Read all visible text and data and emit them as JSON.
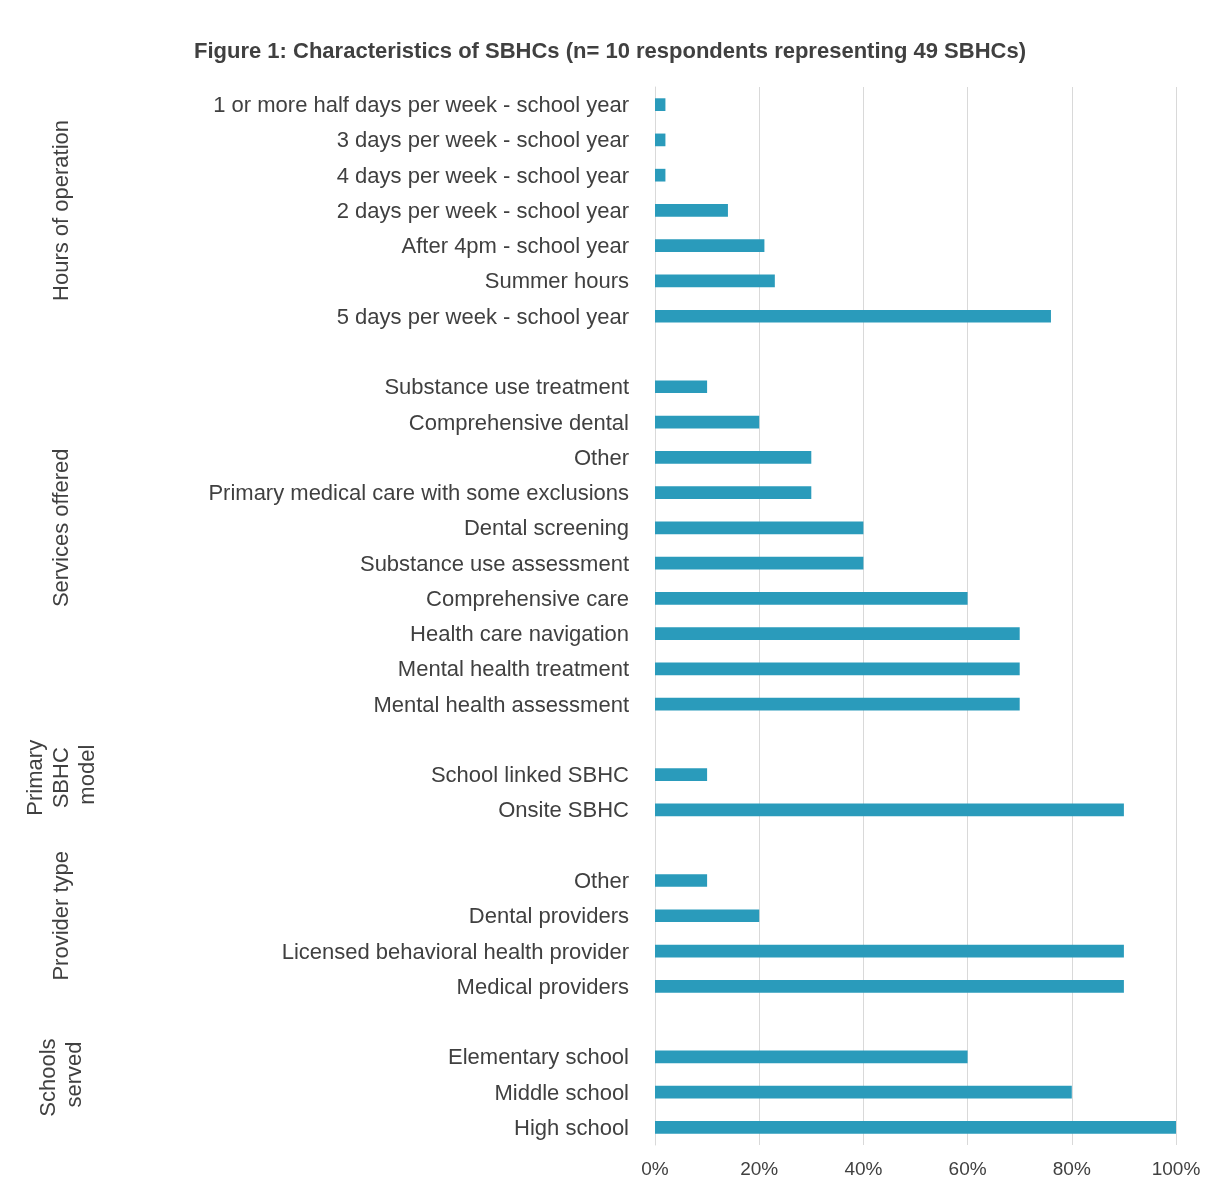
{
  "chart_data": {
    "type": "bar",
    "orientation": "horizontal",
    "title": "Figure 1: Characteristics of SBHCs (n= 10 respondents representing 49 SBHCs)",
    "categories": [
      "1 or more half days per week - school year",
      "3 days per week - school year",
      "4 days per week - school year",
      "2 days per week - school year",
      "After 4pm - school year",
      "Summer hours",
      "5 days per week - school year",
      null,
      "Substance use treatment",
      "Comprehensive dental",
      "Other",
      "Primary medical care with some exclusions",
      "Dental screening",
      "Substance use assessment",
      "Comprehensive care",
      "Health care navigation",
      "Mental health treatment",
      "Mental health assessment",
      null,
      "School linked SBHC",
      "Onsite SBHC",
      null,
      "Other",
      "Dental providers",
      "Licensed behavioral health provider",
      "Medical providers",
      null,
      "Elementary school",
      "Middle school",
      "High school"
    ],
    "values": [
      2,
      2,
      2,
      14,
      21,
      23,
      76,
      null,
      10,
      20,
      30,
      30,
      40,
      40,
      60,
      70,
      70,
      70,
      null,
      10,
      90,
      null,
      10,
      20,
      90,
      90,
      null,
      60,
      80,
      100
    ],
    "color": "#2a9bbb",
    "xlim": [
      0,
      100
    ],
    "xticks": [
      {
        "value": 0,
        "label": "0%"
      },
      {
        "value": 20,
        "label": "20%"
      },
      {
        "value": 40,
        "label": "40%"
      },
      {
        "value": 60,
        "label": "60%"
      },
      {
        "value": 80,
        "label": "80%"
      },
      {
        "value": 100,
        "label": "100%"
      }
    ],
    "annotations": [
      "Hours of operation",
      "Services offered",
      "Primary SBHC model",
      "Provider type",
      "Schools served"
    ],
    "grid": "x"
  }
}
